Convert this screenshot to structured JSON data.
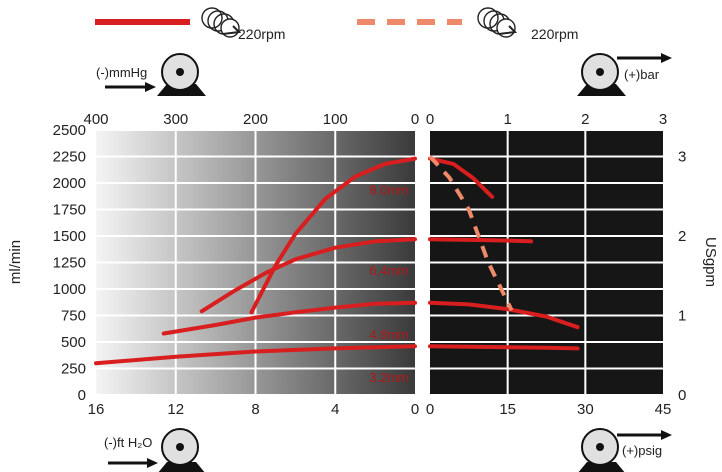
{
  "legend": {
    "solid_label": "220rpm",
    "dashed_label": "220rpm"
  },
  "pumps": {
    "vacuum_top": "(-)mmHg",
    "pressure_top": "(+)bar",
    "vacuum_bottom": "(-)ft H₂O",
    "pressure_bottom": "(+)psig"
  },
  "colors": {
    "curve": "#d81e1e",
    "dashed_curve": "#ee8a6a",
    "right_panel": "#161616",
    "grid": "#ffffff",
    "curve_label": "#b01818"
  },
  "chart_data": {
    "type": "line",
    "left_panel": {
      "background": "gradient light-gray to dark-gray",
      "x_axis_mmHg": {
        "ticks": [
          "400",
          "300",
          "200",
          "100",
          "0"
        ],
        "values": [
          400,
          300,
          200,
          100,
          0
        ],
        "range": [
          400,
          0
        ]
      },
      "x_axis_ftH2O": {
        "ticks": [
          "16",
          "12",
          "8",
          "4",
          "0"
        ],
        "values": [
          16,
          12,
          8,
          4,
          0
        ],
        "range": [
          16,
          0
        ]
      }
    },
    "right_panel": {
      "background": "black",
      "x_axis_bar": {
        "ticks": [
          "0",
          "1",
          "2",
          "3"
        ],
        "values": [
          0,
          1,
          2,
          3
        ],
        "range": [
          0,
          3
        ]
      },
      "x_axis_psig": {
        "ticks": [
          "0",
          "15",
          "30",
          "45"
        ],
        "values": [
          0,
          15,
          30,
          45
        ],
        "range": [
          0,
          45
        ]
      }
    },
    "y_left": {
      "label": "ml/min",
      "ticks": [
        "2500",
        "2250",
        "2000",
        "1750",
        "1500",
        "1250",
        "1000",
        "750",
        "500",
        "250",
        "0"
      ],
      "values": [
        2500,
        2250,
        2000,
        1750,
        1500,
        1250,
        1000,
        750,
        500,
        250,
        0
      ],
      "range": [
        0,
        2500
      ]
    },
    "y_right": {
      "label": "USgpm",
      "ticks": [
        "3",
        "2",
        "1",
        "0"
      ],
      "values": [
        3,
        2,
        1,
        0
      ]
    },
    "series": [
      {
        "name": "3.2mm",
        "vacuum_points": [
          [
            16,
            300
          ],
          [
            12,
            360
          ],
          [
            8,
            410
          ],
          [
            4,
            440
          ],
          [
            0,
            460
          ]
        ],
        "pressure_points": [
          [
            0,
            460
          ],
          [
            0.5,
            455
          ],
          [
            1,
            450
          ],
          [
            1.5,
            445
          ],
          [
            1.9,
            440
          ]
        ]
      },
      {
        "name": "4.8mm",
        "vacuum_points": [
          [
            12.6,
            580
          ],
          [
            10,
            660
          ],
          [
            8,
            730
          ],
          [
            6,
            780
          ],
          [
            4,
            825
          ],
          [
            2,
            860
          ],
          [
            0,
            870
          ]
        ],
        "pressure_points": [
          [
            0,
            870
          ],
          [
            0.5,
            855
          ],
          [
            1,
            810
          ],
          [
            1.5,
            740
          ],
          [
            1.9,
            640
          ]
        ]
      },
      {
        "name": "6.4mm",
        "vacuum_points": [
          [
            10.7,
            790
          ],
          [
            9,
            990
          ],
          [
            7.5,
            1150
          ],
          [
            6,
            1280
          ],
          [
            4,
            1390
          ],
          [
            2,
            1450
          ],
          [
            0,
            1470
          ]
        ],
        "pressure_points": [
          [
            0,
            1470
          ],
          [
            0.4,
            1465
          ],
          [
            0.8,
            1460
          ],
          [
            1.3,
            1450
          ]
        ]
      },
      {
        "name": "8.0mm",
        "vacuum_points": [
          [
            8.2,
            780
          ],
          [
            7,
            1220
          ],
          [
            6,
            1520
          ],
          [
            4.5,
            1850
          ],
          [
            3,
            2060
          ],
          [
            1.5,
            2180
          ],
          [
            0,
            2230
          ]
        ],
        "pressure_points": [
          [
            0,
            2230
          ],
          [
            0.3,
            2180
          ],
          [
            0.55,
            2050
          ],
          [
            0.8,
            1870
          ]
        ]
      }
    ],
    "dashed_series": {
      "points": [
        [
          0,
          2250
        ],
        [
          0.25,
          2050
        ],
        [
          0.5,
          1750
        ],
        [
          0.75,
          1250
        ],
        [
          1.05,
          800
        ]
      ]
    },
    "grid": true,
    "legend_placement": "top"
  }
}
